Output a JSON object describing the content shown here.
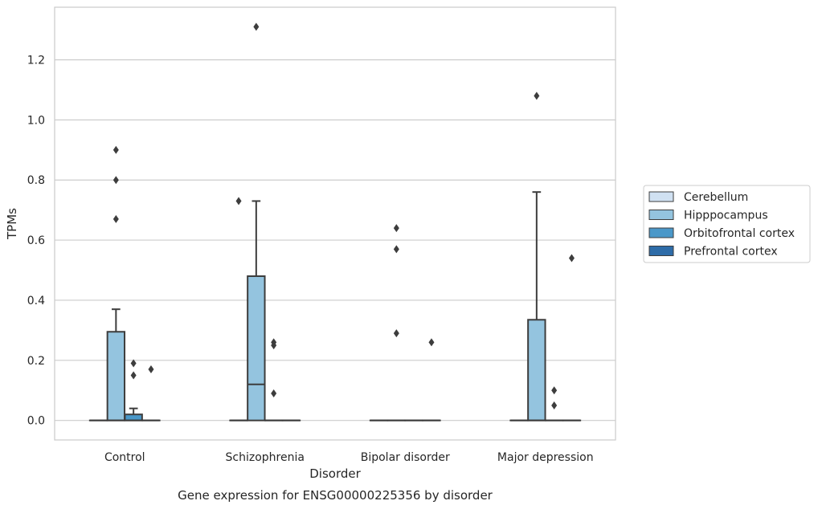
{
  "caption": "Gene expression for ENSG00000225356 by disorder",
  "chart_data": {
    "type": "box",
    "title": "",
    "xlabel": "Disorder",
    "ylabel": "TPMs",
    "ylim": [
      -0.065,
      1.375
    ],
    "yticks": [
      0.0,
      0.2,
      0.4,
      0.6,
      0.8,
      1.0,
      1.2
    ],
    "ytick_labels": [
      "0.0",
      "0.2",
      "0.4",
      "0.6",
      "0.8",
      "1.0",
      "1.2"
    ],
    "grid": "horizontal",
    "legend_position": "right",
    "categories": [
      "Control",
      "Schizophrenia",
      "Bipolar disorder",
      "Major depression"
    ],
    "series": [
      {
        "name": "Cerebellum",
        "color": "#d0e1f2",
        "boxes": [
          {
            "q1": 0,
            "median": 0,
            "q3": 0,
            "whisker_low": 0,
            "whisker_high": 0,
            "outliers": []
          },
          {
            "q1": 0,
            "median": 0,
            "q3": 0,
            "whisker_low": 0,
            "whisker_high": 0,
            "outliers": [
              0.73
            ]
          },
          {
            "q1": 0,
            "median": 0,
            "q3": 0,
            "whisker_low": 0,
            "whisker_high": 0,
            "outliers": []
          },
          {
            "q1": 0,
            "median": 0,
            "q3": 0,
            "whisker_low": 0,
            "whisker_high": 0,
            "outliers": []
          }
        ]
      },
      {
        "name": "Hipppocampus",
        "color": "#94c4df",
        "boxes": [
          {
            "q1": 0,
            "median": 0,
            "q3": 0.295,
            "whisker_low": 0,
            "whisker_high": 0.37,
            "outliers": [
              0.9,
              0.8,
              0.67
            ]
          },
          {
            "q1": 0,
            "median": 0.12,
            "q3": 0.48,
            "whisker_low": 0,
            "whisker_high": 0.73,
            "outliers": [
              1.31
            ]
          },
          {
            "q1": 0,
            "median": 0,
            "q3": 0,
            "whisker_low": 0,
            "whisker_high": 0,
            "outliers": [
              0.64,
              0.57,
              0.29
            ]
          },
          {
            "q1": 0,
            "median": 0,
            "q3": 0.335,
            "whisker_low": 0,
            "whisker_high": 0.76,
            "outliers": [
              1.08
            ]
          }
        ]
      },
      {
        "name": "Orbitofrontal cortex",
        "color": "#4a98c9",
        "boxes": [
          {
            "q1": 0,
            "median": 0,
            "q3": 0.02,
            "whisker_low": 0,
            "whisker_high": 0.04,
            "outliers": [
              0.19,
              0.15
            ]
          },
          {
            "q1": 0,
            "median": 0,
            "q3": 0,
            "whisker_low": 0,
            "whisker_high": 0,
            "outliers": [
              0.26,
              0.25,
              0.09
            ]
          },
          {
            "q1": 0,
            "median": 0,
            "q3": 0,
            "whisker_low": 0,
            "whisker_high": 0,
            "outliers": []
          },
          {
            "q1": 0,
            "median": 0,
            "q3": 0,
            "whisker_low": 0,
            "whisker_high": 0,
            "outliers": [
              0.1,
              0.05
            ]
          }
        ]
      },
      {
        "name": "Prefrontal cortex",
        "color": "#2e6ca8",
        "boxes": [
          {
            "q1": 0,
            "median": 0,
            "q3": 0,
            "whisker_low": 0,
            "whisker_high": 0,
            "outliers": [
              0.17
            ]
          },
          {
            "q1": 0,
            "median": 0,
            "q3": 0,
            "whisker_low": 0,
            "whisker_high": 0,
            "outliers": []
          },
          {
            "q1": 0,
            "median": 0,
            "q3": 0,
            "whisker_low": 0,
            "whisker_high": 0,
            "outliers": [
              0.26
            ]
          },
          {
            "q1": 0,
            "median": 0,
            "q3": 0,
            "whisker_low": 0,
            "whisker_high": 0,
            "outliers": [
              0.54
            ]
          }
        ]
      }
    ]
  }
}
